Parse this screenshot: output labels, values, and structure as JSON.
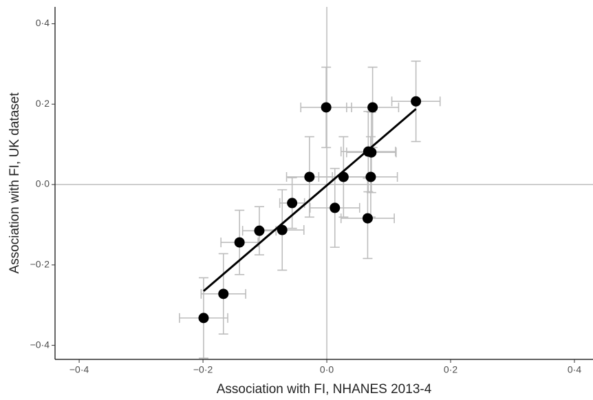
{
  "chart_data": {
    "type": "scatter",
    "xlabel": "Association with FI, NHANES 2013-4",
    "ylabel": "Association with FI, UK dataset",
    "xlim": [
      -0.439,
      0.43
    ],
    "ylim": [
      -0.435,
      0.442
    ],
    "xticks": [
      {
        "value": -0.4,
        "label": "−0·4"
      },
      {
        "value": -0.2,
        "label": "−0·2"
      },
      {
        "value": 0,
        "label": "0·0"
      },
      {
        "value": 0.2,
        "label": "0·2"
      },
      {
        "value": 0.4,
        "label": "0·4"
      }
    ],
    "yticks": [
      {
        "value": -0.4,
        "label": "−0·4"
      },
      {
        "value": -0.2,
        "label": "−0·2"
      },
      {
        "value": 0,
        "label": "0·0"
      },
      {
        "value": 0.2,
        "label": "0·2"
      },
      {
        "value": 0.4,
        "label": "0·4"
      }
    ],
    "series": [
      {
        "color": "#000000",
        "error_color": "#bdbdbd",
        "x": [
          -0.199,
          -0.167,
          -0.141,
          -0.109,
          -0.072,
          -0.056,
          -0.028,
          -0.001,
          0.013,
          0.027,
          0.066,
          0.067,
          0.072,
          0.071,
          0.074,
          0.144
        ],
        "y": [
          -0.332,
          -0.272,
          -0.144,
          -0.115,
          -0.113,
          -0.046,
          0.019,
          0.192,
          -0.058,
          0.019,
          -0.084,
          0.082,
          0.08,
          0.019,
          0.192,
          0.207
        ],
        "xerr": [
          0.039,
          0.036,
          0.03,
          0.027,
          0.035,
          0.02,
          0.037,
          0.041,
          0.04,
          0.04,
          0.043,
          0.044,
          0.04,
          0.043,
          0.042,
          0.039
        ],
        "yerr": [
          0.1,
          0.1,
          0.08,
          0.06,
          0.1,
          0.063,
          0.1,
          0.1,
          0.098,
          0.1,
          0.1,
          0.1,
          0.1,
          0.1,
          0.1,
          0.1
        ]
      }
    ],
    "fit_line": {
      "x": [
        -0.199,
        0.144
      ],
      "y": [
        -0.265,
        0.188
      ],
      "color": "#000000"
    },
    "reference_color": "#bdbdbd"
  }
}
